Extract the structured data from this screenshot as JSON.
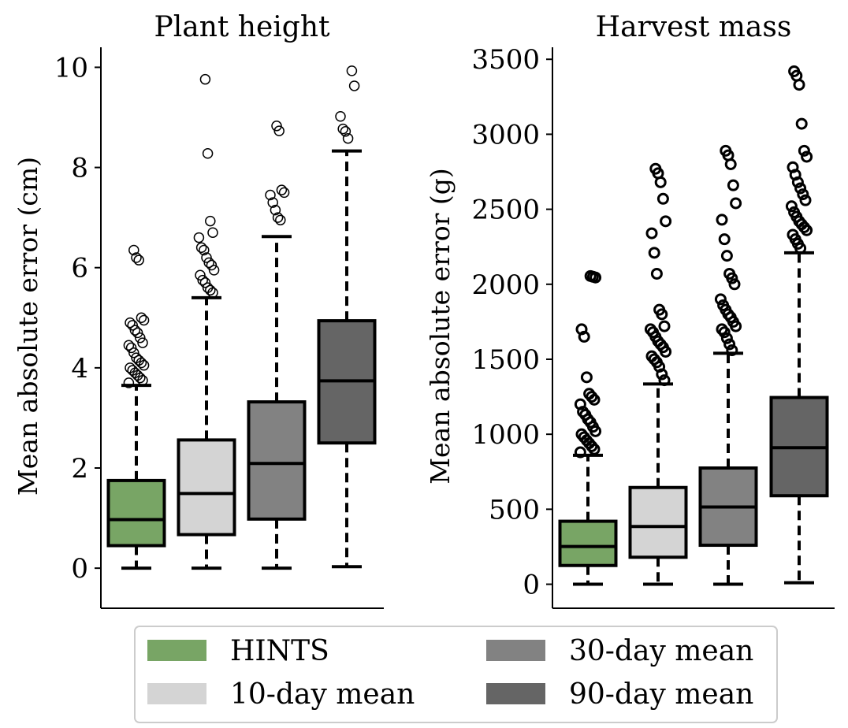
{
  "chart_data": [
    {
      "type": "box",
      "title": "Plant height",
      "xlabel": "",
      "ylabel": "Mean absolute error (cm)",
      "ylim": [
        -0.8,
        10.4
      ],
      "yticks": [
        0,
        2,
        4,
        6,
        8,
        10
      ],
      "ytick_labels": [
        "0",
        "2",
        "4",
        "6",
        "8",
        "10"
      ],
      "series": [
        {
          "name": "HINTS",
          "whisker_low": 0.0,
          "q1": 0.45,
          "median": 0.97,
          "q3": 1.75,
          "whisker_high": 3.65,
          "outliers": [
            3.7,
            3.75,
            3.8,
            3.85,
            3.9,
            3.95,
            4.0,
            4.05,
            4.1,
            4.15,
            4.2,
            4.3,
            4.4,
            4.45,
            4.5,
            4.6,
            4.7,
            4.75,
            4.85,
            4.9,
            4.95,
            5.0,
            6.15,
            6.2,
            6.35
          ]
        },
        {
          "name": "10-day mean",
          "whisker_low": 0.0,
          "q1": 0.67,
          "median": 1.49,
          "q3": 2.56,
          "whisker_high": 5.4,
          "outliers": [
            5.5,
            5.55,
            5.6,
            5.7,
            5.75,
            5.85,
            5.95,
            6.05,
            6.1,
            6.2,
            6.35,
            6.4,
            6.6,
            6.7,
            6.93,
            8.28,
            9.76
          ]
        },
        {
          "name": "30-day mean",
          "whisker_low": 0.0,
          "q1": 0.98,
          "median": 2.09,
          "q3": 3.32,
          "whisker_high": 6.62,
          "outliers": [
            6.95,
            7.0,
            7.15,
            7.3,
            7.45,
            7.5,
            7.55,
            8.73,
            8.83
          ]
        },
        {
          "name": "90-day mean",
          "whisker_low": 0.03,
          "q1": 2.5,
          "median": 3.74,
          "q3": 4.94,
          "whisker_high": 8.33,
          "outliers": [
            8.58,
            8.72,
            8.77,
            9.02,
            9.63,
            9.93
          ]
        }
      ]
    },
    {
      "type": "box",
      "title": "Harvest mass",
      "xlabel": "",
      "ylabel": "Mean absolute error (g)",
      "ylim": [
        -160,
        3580
      ],
      "yticks": [
        0,
        500,
        1000,
        1500,
        2000,
        2500,
        3000,
        3500
      ],
      "ytick_labels": [
        "0",
        "500",
        "1000",
        "1500",
        "2000",
        "2500",
        "3000",
        "3500"
      ],
      "series": [
        {
          "name": "HINTS",
          "whisker_low": 0,
          "q1": 125,
          "median": 252,
          "q3": 420,
          "whisker_high": 860,
          "outliers": [
            880,
            900,
            920,
            940,
            960,
            980,
            1000,
            1020,
            1050,
            1080,
            1100,
            1130,
            1150,
            1200,
            1230,
            1250,
            1270,
            1380,
            1650,
            1700,
            2045,
            2050,
            2055
          ]
        },
        {
          "name": "10-day mean",
          "whisker_low": 0,
          "q1": 180,
          "median": 385,
          "q3": 645,
          "whisker_high": 1335,
          "outliers": [
            1360,
            1400,
            1450,
            1480,
            1500,
            1520,
            1550,
            1580,
            1600,
            1620,
            1650,
            1680,
            1700,
            1720,
            1800,
            1830,
            2070,
            2210,
            2340,
            2420,
            2570,
            2680,
            2740,
            2770
          ]
        },
        {
          "name": "30-day mean",
          "whisker_low": 0,
          "q1": 260,
          "median": 515,
          "q3": 775,
          "whisker_high": 1540,
          "outliers": [
            1560,
            1600,
            1640,
            1680,
            1700,
            1720,
            1750,
            1780,
            1800,
            1830,
            1860,
            1900,
            2000,
            2040,
            2070,
            2190,
            2300,
            2430,
            2540,
            2660,
            2800,
            2860,
            2890
          ]
        },
        {
          "name": "90-day mean",
          "whisker_low": 10,
          "q1": 590,
          "median": 910,
          "q3": 1245,
          "whisker_high": 2210,
          "outliers": [
            2240,
            2270,
            2300,
            2330,
            2360,
            2380,
            2400,
            2420,
            2450,
            2480,
            2520,
            2560,
            2600,
            2640,
            2680,
            2730,
            2780,
            2850,
            2890,
            3070,
            3330,
            3390,
            3420
          ]
        }
      ]
    }
  ],
  "legend": {
    "placement": "bottom",
    "items": [
      {
        "label": "HINTS",
        "color": "#78a565"
      },
      {
        "label": "10-day mean",
        "color": "#d4d4d4"
      },
      {
        "label": "30-day mean",
        "color": "#828282"
      },
      {
        "label": "90-day mean",
        "color": "#656565"
      }
    ]
  },
  "colors": {
    "HINTS": "#78a565",
    "10-day mean": "#d4d4d4",
    "30-day mean": "#828282",
    "90-day mean": "#656565",
    "line": "#000000"
  }
}
